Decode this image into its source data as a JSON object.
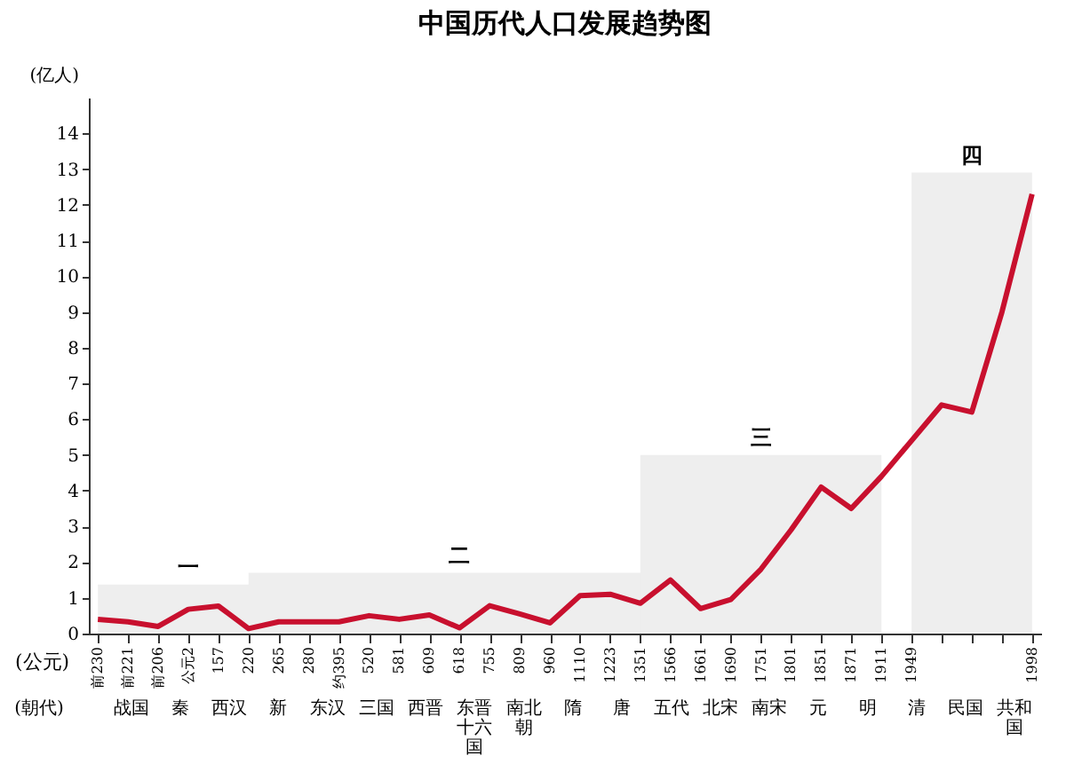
{
  "chart_data": {
    "type": "line",
    "title": "中国历代人口发展趋势图",
    "ylabel": "(亿人)",
    "xlabel": "(公元)",
    "categories": [
      "前230",
      "前221",
      "前206",
      "公元2",
      "157",
      "220",
      "265",
      "280",
      "约395",
      "520",
      "581",
      "609",
      "618",
      "755",
      "809",
      "960",
      "1110",
      "1223",
      "1351",
      "1566",
      "1661",
      "1690",
      "1751",
      "1801",
      "1851",
      "1871",
      "1911",
      "1949",
      null,
      null,
      null,
      "1998"
    ],
    "series": [
      {
        "color": "#c8102e",
        "values": [
          0.4,
          0.33,
          0.2,
          0.68,
          0.77,
          0.14,
          0.33,
          0.33,
          0.33,
          0.5,
          0.4,
          0.52,
          0.16,
          0.78,
          0.55,
          0.3,
          1.06,
          1.1,
          0.85,
          1.5,
          0.7,
          0.95,
          1.8,
          2.9,
          4.1,
          3.5,
          4.4,
          5.4,
          6.4,
          6.2,
          9.0,
          12.3
        ]
      }
    ],
    "ylim": [
      0,
      15
    ],
    "yticks": [
      0,
      1,
      2,
      3,
      4,
      5,
      6,
      7,
      8,
      9,
      10,
      11,
      12,
      13,
      14
    ],
    "grid": false,
    "marker": "none",
    "line_style": "solid",
    "bands": [
      {
        "axis": "x",
        "from": "前230",
        "to": "220",
        "label": "一",
        "color": "#555555"
      },
      {
        "axis": "x",
        "from": "220",
        "to": "1351",
        "label": "二",
        "color": "#555555"
      },
      {
        "axis": "x",
        "from": "1351",
        "to": "1911",
        "label": "三",
        "color": "#555555"
      },
      {
        "axis": "x",
        "from": "1949",
        "to": "1998",
        "label": "四",
        "color": "#555555"
      }
    ],
    "annotations": [
      "(朝代)",
      "战国",
      "秦",
      "西汉",
      "新",
      "东汉",
      "三国",
      "西晋",
      "东晋十六国",
      "南北朝",
      "隋",
      "唐",
      "五代",
      "北宋",
      "南宋",
      "元",
      "明",
      "清",
      "民国",
      "共和国"
    ]
  }
}
